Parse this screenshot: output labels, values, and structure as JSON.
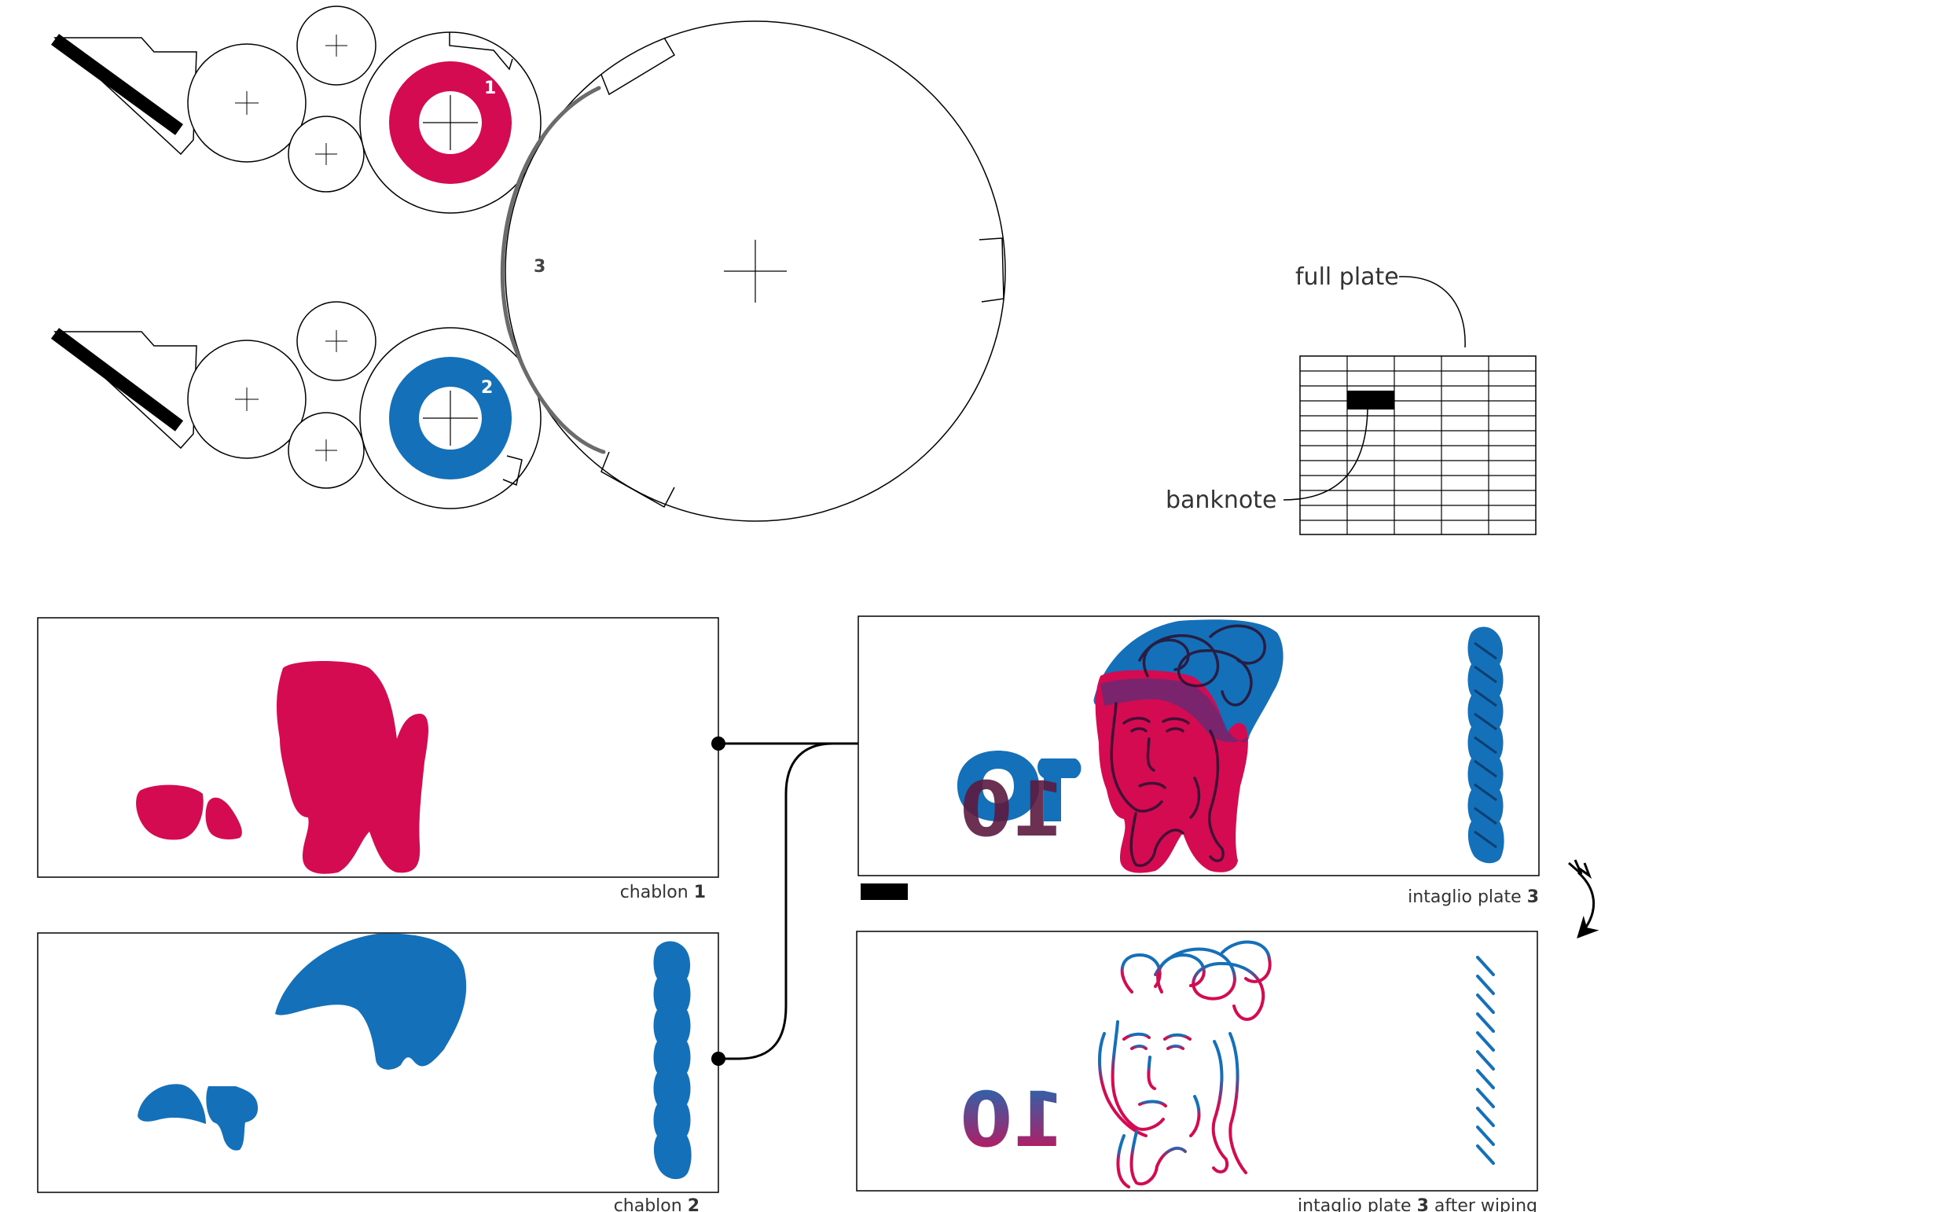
{
  "cylinders": {
    "top_label": "1",
    "bottom_label": "2",
    "main_label": "3"
  },
  "plate_legend": {
    "full_plate_label": "full plate",
    "banknote_label": "banknote"
  },
  "panels": {
    "chablon1": {
      "caption_text": "chablon ",
      "caption_num": "1"
    },
    "chablon2": {
      "caption_text": "chablon ",
      "caption_num": "2"
    },
    "intaglio": {
      "caption_text": "intaglio plate ",
      "caption_num": "3"
    },
    "wiped": {
      "caption_text": "intaglio plate ",
      "caption_num": "3",
      "caption_suffix": " after wiping"
    }
  },
  "colors": {
    "red": "#d50b52",
    "blue": "#1470b8",
    "stroke": "#000000",
    "gray": "#6b6b6b",
    "dark": "#3a1838"
  }
}
